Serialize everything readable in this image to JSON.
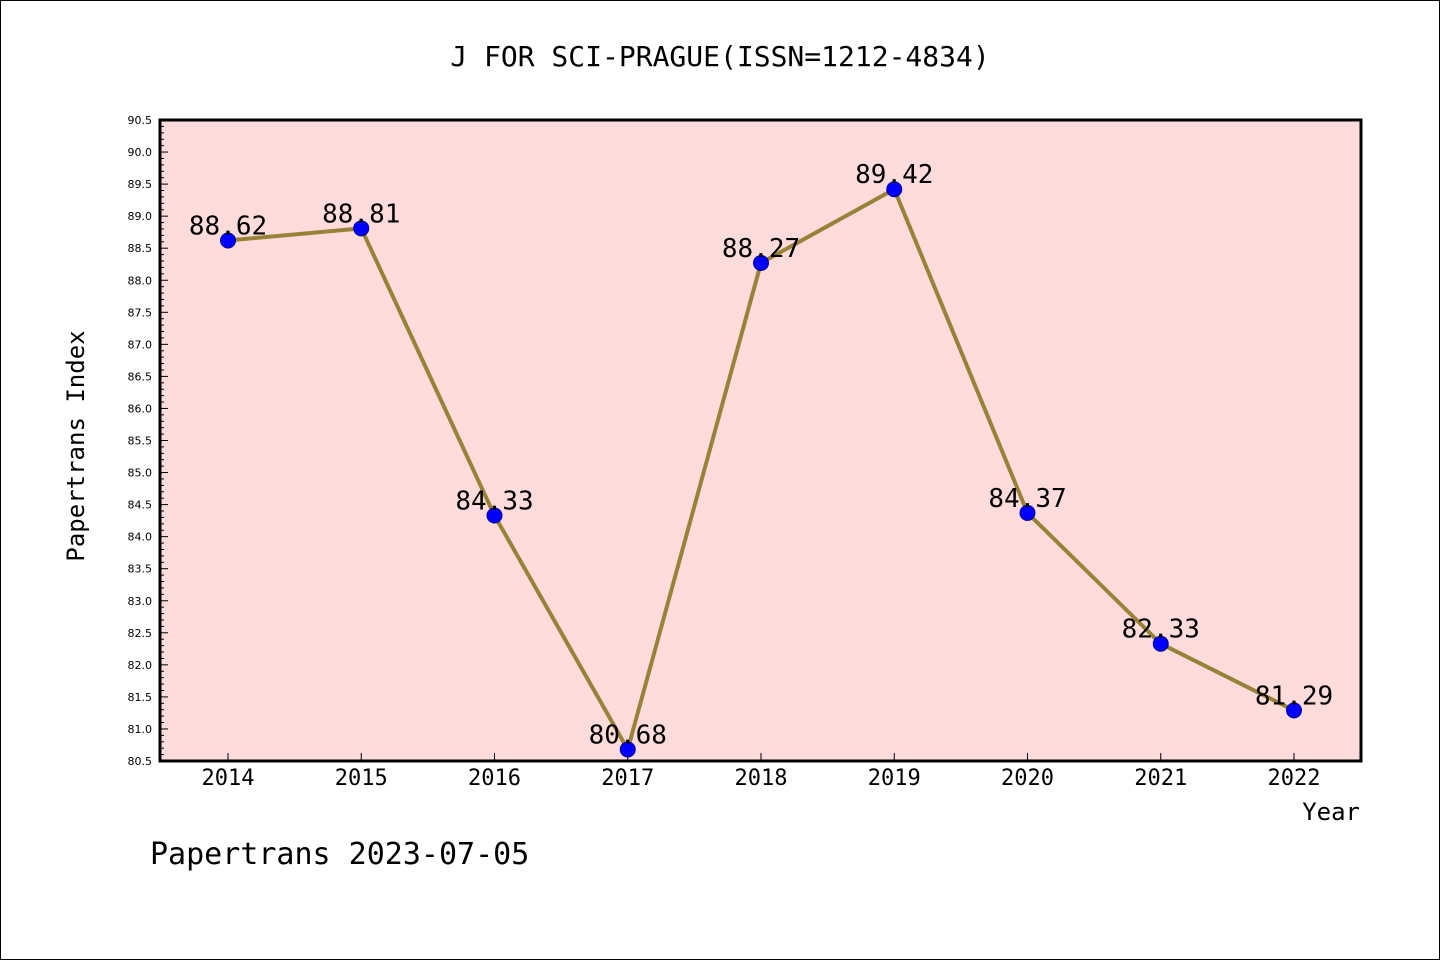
{
  "chart_data": {
    "type": "line",
    "title": "J FOR SCI-PRAGUE(ISSN=1212-4834)",
    "xlabel": "Year",
    "ylabel": "Papertrans Index",
    "categories": [
      "2014",
      "2015",
      "2016",
      "2017",
      "2018",
      "2019",
      "2020",
      "2021",
      "2022"
    ],
    "values": [
      88.62,
      88.81,
      84.33,
      80.68,
      88.27,
      89.42,
      84.37,
      82.33,
      81.29
    ],
    "data_labels": [
      "88.62",
      "88.81",
      "84.33",
      "80.68",
      "88.27",
      "89.42",
      "84.37",
      "82.33",
      "81.29"
    ],
    "ylim": [
      80.5,
      90.5
    ],
    "ytick_step": 0.5,
    "yticks": [
      "80.5",
      "81.0",
      "81.5",
      "82.0",
      "82.5",
      "83.0",
      "83.5",
      "84.0",
      "84.5",
      "85.0",
      "85.5",
      "86.0",
      "86.5",
      "87.0",
      "87.5",
      "88.0",
      "88.5",
      "89.0",
      "89.5",
      "90.0",
      "90.5"
    ],
    "grid": false,
    "colors": {
      "plot_background": "#ffdcdc",
      "line": "#998238",
      "marker": "#0000ff",
      "marker_edge": "#00008b"
    }
  },
  "footer": {
    "watermark": "Papertrans 2023-07-05"
  }
}
